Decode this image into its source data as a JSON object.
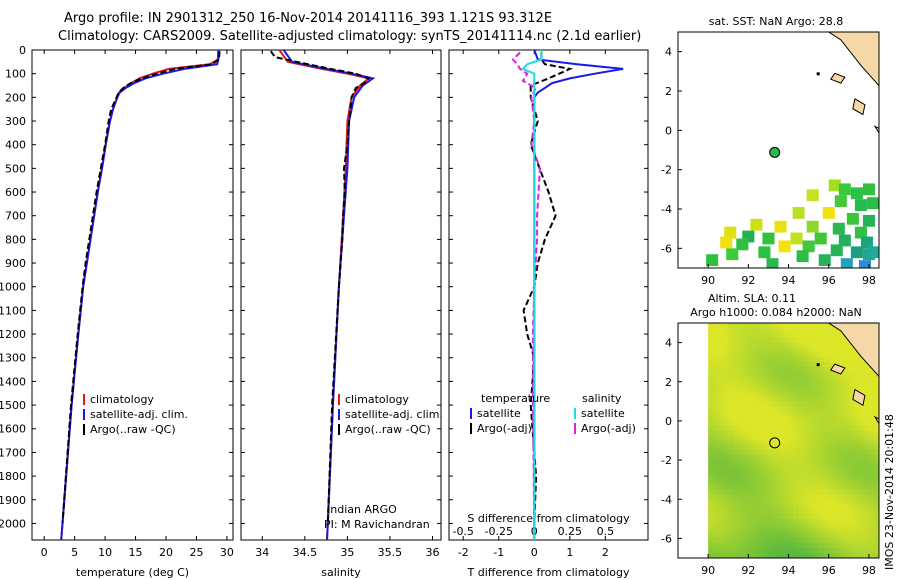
{
  "titles": {
    "line1": "Argo profile: IN 2901312_250 16-Nov-2014 20141116_393 1.121S 93.312E",
    "line2": "Climatology: CARS2009. Satellite-adjusted climatology: synTS_20141114.nc (2.1d earlier)"
  },
  "colors": {
    "climatology": "#e01a1a",
    "satellite": "#1a1ae6",
    "argo": "#000000",
    "satellite_s": "#22d8e8",
    "argo_s": "#e020e0"
  },
  "chart_data": [
    {
      "type": "line",
      "id": "temperature",
      "xlabel": "temperature (deg C)",
      "xlim": [
        -2,
        31
      ],
      "xticks": [
        0,
        5,
        10,
        15,
        20,
        25,
        30
      ],
      "ylim": [
        0,
        2070
      ],
      "yticks": [
        0,
        100,
        200,
        300,
        400,
        500,
        600,
        700,
        800,
        900,
        1000,
        1100,
        1200,
        1300,
        1400,
        1500,
        1600,
        1700,
        1800,
        1900,
        2000
      ],
      "legend": [
        "climatology",
        "satellite-adj. clim.",
        "Argo(..raw -QC)"
      ],
      "series": [
        {
          "name": "climatology",
          "depth": [
            0,
            40,
            60,
            80,
            100,
            120,
            140,
            160,
            180,
            200,
            250,
            300,
            400,
            500,
            600,
            800,
            1000,
            1200,
            1500,
            2000,
            2070
          ],
          "values": [
            28.6,
            28.5,
            27.2,
            20.5,
            17.8,
            15.6,
            14.3,
            13.1,
            12.3,
            12.0,
            11.3,
            10.8,
            10.1,
            9.5,
            8.8,
            7.6,
            6.4,
            5.6,
            4.5,
            3.0,
            2.8
          ]
        },
        {
          "name": "satellite-adj. clim.",
          "depth": [
            0,
            40,
            60,
            80,
            100,
            120,
            140,
            160,
            180,
            200,
            250,
            300,
            400,
            500,
            600,
            800,
            1000,
            1200,
            1500,
            2000,
            2070
          ],
          "values": [
            28.6,
            28.6,
            28.4,
            23.0,
            19.5,
            16.6,
            14.8,
            13.4,
            12.4,
            12.0,
            11.3,
            10.8,
            10.1,
            9.5,
            8.8,
            7.6,
            6.4,
            5.6,
            4.5,
            3.0,
            2.8
          ]
        },
        {
          "name": "Argo(..raw -QC)",
          "depth": [
            5,
            40,
            60,
            80,
            100,
            120,
            140,
            160,
            180,
            200,
            250,
            300,
            400,
            500,
            600,
            700,
            800,
            900,
            1000,
            1200,
            1500,
            2000
          ],
          "values": [
            28.8,
            28.7,
            27.5,
            21.5,
            18.5,
            16.0,
            14.2,
            13.0,
            12.2,
            11.9,
            11.0,
            10.6,
            10.0,
            9.3,
            8.6,
            8.0,
            7.4,
            6.8,
            6.3,
            5.5,
            4.4,
            3.0
          ]
        }
      ]
    },
    {
      "type": "line",
      "id": "salinity",
      "xlabel": "salinity",
      "xlim": [
        33.75,
        36.1
      ],
      "xticks": [
        34,
        34.5,
        35,
        35.5,
        36
      ],
      "ylim": [
        0,
        2070
      ],
      "legend": [
        "climatology",
        "satellite-adj. clim.",
        "Argo(..raw -QC)"
      ],
      "annotation": [
        "Indian ARGO",
        "PI: M Ravichandran"
      ],
      "series": [
        {
          "name": "climatology",
          "depth": [
            0,
            50,
            80,
            100,
            120,
            150,
            200,
            300,
            500,
            700,
            1000,
            1500,
            2000,
            2070
          ],
          "values": [
            34.2,
            34.3,
            34.7,
            35.0,
            35.25,
            35.15,
            35.05,
            35.0,
            34.98,
            34.95,
            34.9,
            34.83,
            34.77,
            34.76
          ]
        },
        {
          "name": "satellite-adj. clim.",
          "depth": [
            0,
            50,
            80,
            100,
            120,
            150,
            200,
            300,
            500,
            700,
            1000,
            1500,
            2000,
            2070
          ],
          "values": [
            34.25,
            34.35,
            34.75,
            35.05,
            35.3,
            35.18,
            35.08,
            35.02,
            35.0,
            34.96,
            34.9,
            34.83,
            34.77,
            34.76
          ]
        },
        {
          "name": "Argo(..raw -QC)",
          "depth": [
            5,
            30,
            50,
            80,
            100,
            120,
            140,
            160,
            200,
            300,
            400,
            500,
            600,
            700,
            800,
            900,
            1000,
            1500,
            2000
          ],
          "values": [
            34.1,
            34.15,
            34.4,
            34.8,
            35.1,
            35.25,
            35.2,
            35.1,
            35.05,
            35.02,
            35.0,
            34.96,
            34.97,
            34.95,
            34.94,
            34.92,
            34.9,
            34.82,
            34.77
          ]
        }
      ]
    },
    {
      "type": "line",
      "id": "difference",
      "xlabel": "T difference from climatology",
      "xlabel_top": "S difference from climatology",
      "xlim": [
        -2.4,
        3.2
      ],
      "xticks": [
        -2,
        -1,
        0,
        1,
        2
      ],
      "xlim_s": [
        -0.6,
        0.8
      ],
      "xticks_s": [
        -0.5,
        -0.25,
        0,
        0.25,
        0.5
      ],
      "xticklabels_s": [
        "-0.5",
        "-0.25",
        "0",
        "0.25",
        "0.5"
      ],
      "ylim": [
        0,
        2070
      ],
      "legend_temperature": {
        "title": "temperature",
        "items": [
          "satellite",
          "Argo(-adj)"
        ]
      },
      "legend_salinity": {
        "title": "salinity",
        "items": [
          "satellite",
          "Argo(-adj)"
        ]
      },
      "series": [
        {
          "name": "T satellite",
          "depth": [
            0,
            40,
            60,
            80,
            100,
            120,
            140,
            160,
            180,
            200,
            300,
            500,
            1000,
            1500,
            2070
          ],
          "values": [
            0,
            0.1,
            1.2,
            2.5,
            1.7,
            1.0,
            0.5,
            0.3,
            0.1,
            0,
            0,
            0,
            0,
            0,
            0
          ]
        },
        {
          "name": "T Argo(-adj)",
          "depth": [
            10,
            40,
            60,
            80,
            100,
            120,
            150,
            200,
            300,
            400,
            500,
            600,
            700,
            800,
            900,
            1000,
            1100,
            1200,
            1300,
            1500,
            1800,
            2000
          ],
          "values": [
            0.2,
            0.2,
            0.3,
            1.0,
            0.7,
            0.4,
            -0.1,
            -0.1,
            0.1,
            -0.1,
            0.15,
            0.4,
            0.6,
            0.3,
            0.1,
            0,
            -0.3,
            -0.2,
            0.0,
            -0.1,
            0.05,
            0
          ]
        },
        {
          "name": "S satellite",
          "depth": [
            0,
            40,
            60,
            80,
            100,
            150,
            200,
            400,
            1000,
            2070
          ],
          "values": [
            0.05,
            0.05,
            -0.05,
            -0.08,
            0,
            0,
            0,
            0,
            0,
            0
          ]
        },
        {
          "name": "S Argo(-adj)",
          "depth": [
            10,
            40,
            60,
            80,
            100,
            130,
            160,
            200,
            300,
            400,
            500,
            600,
            700,
            800,
            900,
            1000,
            1200,
            1500,
            2000
          ],
          "values": [
            -0.1,
            -0.15,
            -0.12,
            -0.1,
            -0.05,
            -0.08,
            0.01,
            -0.02,
            0,
            -0.02,
            0.04,
            0.03,
            0.02,
            0.02,
            0.01,
            0,
            -0.01,
            -0.01,
            0
          ]
        }
      ]
    },
    {
      "type": "heatmap",
      "id": "sst-map",
      "title": "sat. SST: NaN Argo: 28.8",
      "xlim": [
        88.5,
        98.5
      ],
      "ylim": [
        -7,
        5
      ],
      "xticks": [
        90,
        92,
        94,
        96,
        98
      ],
      "yticks": [
        -6,
        -4,
        -2,
        0,
        2,
        4
      ],
      "argo_position": {
        "lon": 93.312,
        "lat": -1.121
      }
    },
    {
      "type": "heatmap",
      "id": "sla-map",
      "title": "Altim. SLA: 0.11",
      "subtitle": "Argo h1000: 0.084 h2000: NaN",
      "xlim": [
        88.5,
        98.5
      ],
      "ylim": [
        -7,
        5
      ],
      "xticks": [
        90,
        92,
        94,
        96,
        98
      ],
      "yticks": [
        -6,
        -4,
        -2,
        0,
        2,
        4
      ],
      "argo_position": {
        "lon": 93.312,
        "lat": -1.121
      }
    }
  ],
  "imos_stamp": "IMOS 23-Nov-2014 20:01:48"
}
